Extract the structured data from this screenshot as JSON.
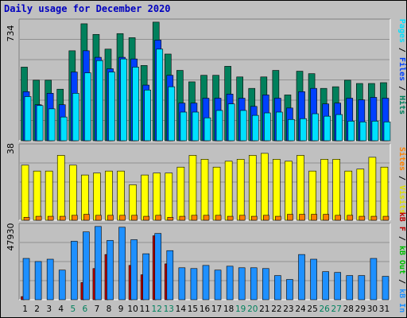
{
  "title": "Daily usage for December 2020",
  "colors": {
    "frame_bg": "#c0c0c0",
    "hits": "#00805c",
    "files": "#0040ff",
    "pages": "#00e0ff",
    "visits": "#ffff00",
    "sites": "#ff8000",
    "kb_in": "#1e90ff",
    "kb_out": "#00c000",
    "kb_f": "#c00000",
    "weekend_label": "#00805c"
  },
  "right_labels": {
    "hits_chart": [
      {
        "text": "Pages",
        "color": "#00e0ff"
      },
      {
        "text": " / ",
        "color": "#000000"
      },
      {
        "text": "Files",
        "color": "#0040ff"
      },
      {
        "text": " / ",
        "color": "#000000"
      },
      {
        "text": "Hits",
        "color": "#00805c"
      }
    ],
    "visits_chart": [
      {
        "text": "Sites",
        "color": "#ff8000"
      },
      {
        "text": " / ",
        "color": "#000000"
      },
      {
        "text": "Visits",
        "color": "#e0e000"
      }
    ],
    "kb_chart": [
      {
        "text": "kB F",
        "color": "#c00000"
      },
      {
        "text": " / ",
        "color": "#000000"
      },
      {
        "text": "kB Out",
        "color": "#00c000"
      },
      {
        "text": " / ",
        "color": "#000000"
      },
      {
        "text": "kB In",
        "color": "#1e90ff"
      }
    ]
  },
  "chart_data": [
    {
      "type": "bar",
      "ymax_label": "734",
      "ymax": 734,
      "categories": [
        "1",
        "2",
        "3",
        "4",
        "5",
        "6",
        "7",
        "8",
        "9",
        "10",
        "11",
        "12",
        "13",
        "14",
        "15",
        "16",
        "17",
        "18",
        "19",
        "20",
        "21",
        "22",
        "23",
        "24",
        "25",
        "26",
        "27",
        "28",
        "29",
        "30",
        "31"
      ],
      "weekend_days": [
        5,
        6,
        12,
        13,
        19,
        20,
        26,
        27
      ],
      "series": [
        {
          "key": "hits",
          "values": [
            450,
            370,
            370,
            315,
            550,
            715,
            650,
            560,
            655,
            630,
            460,
            725,
            530,
            430,
            360,
            400,
            400,
            455,
            390,
            320,
            390,
            430,
            280,
            425,
            410,
            320,
            330,
            370,
            350,
            350,
            355
          ]
        },
        {
          "key": "files",
          "values": [
            300,
            220,
            290,
            220,
            420,
            550,
            510,
            440,
            510,
            500,
            340,
            615,
            400,
            230,
            230,
            260,
            260,
            285,
            260,
            210,
            280,
            260,
            200,
            300,
            320,
            225,
            230,
            260,
            250,
            265,
            260
          ]
        },
        {
          "key": "pages",
          "values": [
            270,
            215,
            195,
            145,
            290,
            415,
            490,
            420,
            500,
            450,
            310,
            560,
            330,
            175,
            175,
            140,
            185,
            225,
            185,
            155,
            170,
            175,
            130,
            135,
            165,
            150,
            160,
            120,
            115,
            120,
            115
          ]
        }
      ]
    },
    {
      "type": "bar",
      "ymax_label": "38",
      "ymax": 38,
      "categories": [
        "1",
        "2",
        "3",
        "4",
        "5",
        "6",
        "7",
        "8",
        "9",
        "10",
        "11",
        "12",
        "13",
        "14",
        "15",
        "16",
        "17",
        "18",
        "19",
        "20",
        "21",
        "22",
        "23",
        "24",
        "25",
        "26",
        "27",
        "28",
        "29",
        "30",
        "31"
      ],
      "series": [
        {
          "key": "visits",
          "values": [
            28,
            25,
            25,
            33,
            28,
            23,
            24,
            25,
            25,
            18,
            23,
            24,
            24,
            27,
            33,
            31,
            27,
            30,
            31,
            33,
            34,
            31,
            30,
            33,
            25,
            31,
            31,
            25,
            26,
            32,
            27
          ]
        },
        {
          "key": "sites",
          "values": [
            1.5,
            2,
            2,
            2,
            2.5,
            3,
            2.5,
            2.5,
            2.5,
            2.5,
            2,
            2.5,
            1.5,
            2,
            2.5,
            2.5,
            2.5,
            2,
            2.5,
            2,
            2.5,
            2,
            3,
            3,
            3,
            3,
            2.5,
            2.5,
            2,
            2,
            2
          ]
        }
      ]
    },
    {
      "type": "bar",
      "ymax_label": "47930",
      "ymax": 47930,
      "categories": [
        "1",
        "2",
        "3",
        "4",
        "5",
        "6",
        "7",
        "8",
        "9",
        "10",
        "11",
        "12",
        "13",
        "14",
        "15",
        "16",
        "17",
        "18",
        "19",
        "20",
        "21",
        "22",
        "23",
        "24",
        "25",
        "26",
        "27",
        "28",
        "29",
        "30",
        "31"
      ],
      "series": [
        {
          "key": "kb_in",
          "values": [
            26500,
            24500,
            26000,
            19000,
            37500,
            43500,
            47000,
            38000,
            46500,
            38500,
            29500,
            42500,
            31500,
            20500,
            20000,
            22000,
            19000,
            21500,
            20500,
            20500,
            20000,
            15500,
            13000,
            29000,
            26000,
            18000,
            17500,
            15500,
            15500,
            26500,
            15000
          ]
        },
        {
          "key": "kb_out",
          "values": [
            0,
            0,
            0,
            0,
            0,
            0,
            0,
            0,
            0,
            0,
            0,
            0,
            0,
            0,
            0,
            0,
            0,
            0,
            0,
            0,
            0,
            0,
            0,
            0,
            0,
            0,
            0,
            0,
            0,
            0,
            0
          ]
        },
        {
          "key": "kb_f",
          "values": [
            2000,
            0,
            0,
            0,
            0,
            11000,
            20000,
            29000,
            0,
            22000,
            16000,
            41000,
            23000,
            0,
            0,
            0,
            0,
            0,
            0,
            0,
            0,
            0,
            0,
            0,
            0,
            0,
            0,
            0,
            0,
            0,
            0
          ]
        }
      ]
    }
  ]
}
